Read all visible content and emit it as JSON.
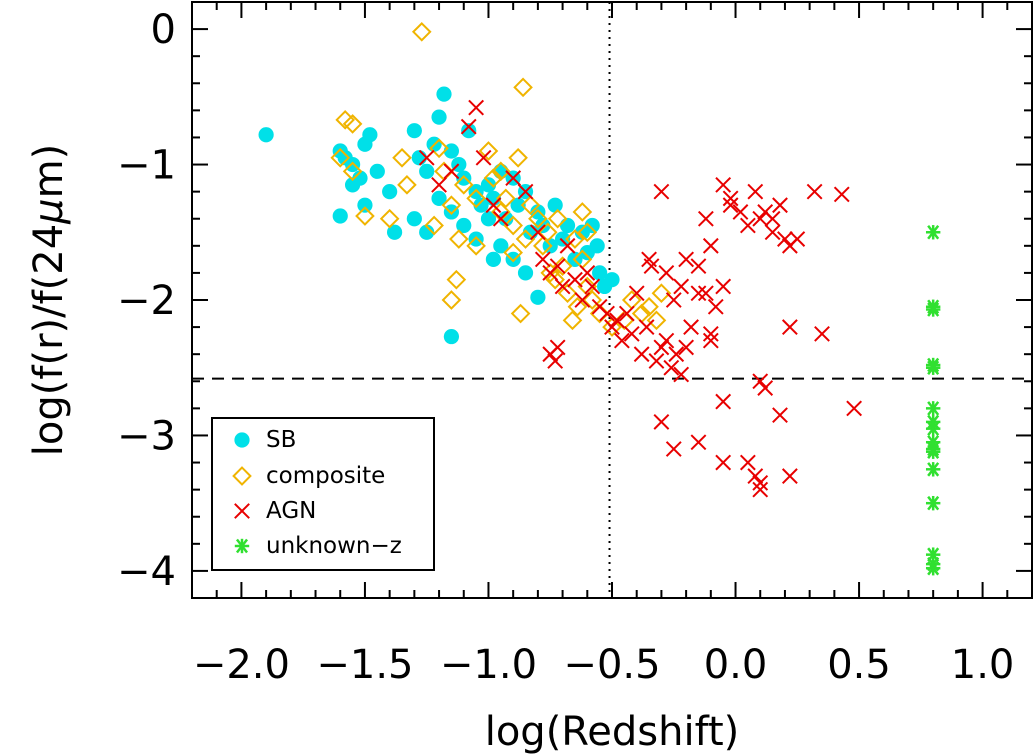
{
  "chart_data": {
    "type": "scatter",
    "xlabel": "log(Redshift)",
    "ylabel_parts": [
      "log(f(r)/f(24",
      "μ",
      "m)"
    ],
    "xlim": [
      -2.2,
      1.2
    ],
    "ylim": [
      -4.2,
      0.2
    ],
    "x_ticks": [
      -2.0,
      -1.5,
      -1.0,
      -0.5,
      0.0,
      0.5,
      1.0
    ],
    "x_tick_labels": [
      "−2.0",
      "−1.5",
      "−1.0",
      "−0.5",
      "0.0",
      "0.5",
      "1.0"
    ],
    "y_ticks": [
      0,
      -1,
      -2,
      -3,
      -4
    ],
    "y_tick_labels": [
      "0",
      "−1",
      "−2",
      "−3",
      "−4"
    ],
    "reference_lines": [
      {
        "orientation": "vertical",
        "x": -0.51,
        "style": "dotted"
      },
      {
        "orientation": "horizontal",
        "y": -2.58,
        "style": "dashed"
      }
    ],
    "legend_position": "bottom-left",
    "series": [
      {
        "name": "SB",
        "marker": "circle",
        "color": "#00e0e8",
        "points": [
          [
            -1.9,
            -0.78
          ],
          [
            -1.6,
            -0.9
          ],
          [
            -1.58,
            -0.95
          ],
          [
            -1.55,
            -1.0
          ],
          [
            -1.5,
            -0.85
          ],
          [
            -1.48,
            -0.78
          ],
          [
            -1.52,
            -1.1
          ],
          [
            -1.45,
            -1.05
          ],
          [
            -1.55,
            -1.15
          ],
          [
            -1.5,
            -1.3
          ],
          [
            -1.6,
            -1.38
          ],
          [
            -1.4,
            -1.2
          ],
          [
            -1.38,
            -1.5
          ],
          [
            -1.3,
            -0.75
          ],
          [
            -1.28,
            -0.95
          ],
          [
            -1.25,
            -1.05
          ],
          [
            -1.22,
            -0.85
          ],
          [
            -1.2,
            -0.65
          ],
          [
            -1.18,
            -0.48
          ],
          [
            -1.15,
            -0.9
          ],
          [
            -1.12,
            -1.0
          ],
          [
            -1.1,
            -1.1
          ],
          [
            -1.08,
            -0.75
          ],
          [
            -1.05,
            -1.2
          ],
          [
            -1.03,
            -1.3
          ],
          [
            -1.0,
            -1.15
          ],
          [
            -0.98,
            -1.25
          ],
          [
            -0.95,
            -1.05
          ],
          [
            -0.93,
            -1.4
          ],
          [
            -0.9,
            -1.1
          ],
          [
            -0.88,
            -1.3
          ],
          [
            -0.85,
            -1.2
          ],
          [
            -0.83,
            -1.5
          ],
          [
            -0.8,
            -1.35
          ],
          [
            -0.78,
            -1.45
          ],
          [
            -0.75,
            -1.6
          ],
          [
            -0.73,
            -1.3
          ],
          [
            -0.7,
            -1.55
          ],
          [
            -0.68,
            -1.45
          ],
          [
            -0.65,
            -1.7
          ],
          [
            -0.62,
            -1.5
          ],
          [
            -0.6,
            -1.65
          ],
          [
            -0.58,
            -1.45
          ],
          [
            -0.56,
            -1.6
          ],
          [
            -0.55,
            -1.8
          ],
          [
            -0.53,
            -1.9
          ],
          [
            -0.5,
            -1.85
          ],
          [
            -1.2,
            -1.25
          ],
          [
            -1.15,
            -1.35
          ],
          [
            -1.1,
            -1.45
          ],
          [
            -1.05,
            -1.55
          ],
          [
            -1.0,
            -1.4
          ],
          [
            -0.95,
            -1.6
          ],
          [
            -0.9,
            -1.7
          ],
          [
            -0.85,
            -1.8
          ],
          [
            -0.8,
            -1.98
          ],
          [
            -1.15,
            -2.27
          ],
          [
            -1.3,
            -1.4
          ],
          [
            -1.25,
            -1.5
          ],
          [
            -0.98,
            -1.7
          ]
        ]
      },
      {
        "name": "composite",
        "marker": "diamond",
        "color": "#f0b400",
        "points": [
          [
            -1.27,
            -0.02
          ],
          [
            -0.86,
            -0.43
          ],
          [
            -1.58,
            -0.67
          ],
          [
            -1.55,
            -0.7
          ],
          [
            -1.6,
            -0.95
          ],
          [
            -1.55,
            -1.05
          ],
          [
            -1.5,
            -1.38
          ],
          [
            -1.4,
            -1.4
          ],
          [
            -1.35,
            -0.95
          ],
          [
            -1.33,
            -1.15
          ],
          [
            -1.2,
            -0.88
          ],
          [
            -1.18,
            -1.05
          ],
          [
            -1.15,
            -1.3
          ],
          [
            -1.12,
            -1.55
          ],
          [
            -1.1,
            -1.15
          ],
          [
            -1.05,
            -1.25
          ],
          [
            -1.0,
            -0.9
          ],
          [
            -0.98,
            -1.1
          ],
          [
            -0.95,
            -1.35
          ],
          [
            -0.93,
            -1.25
          ],
          [
            -0.9,
            -1.45
          ],
          [
            -0.88,
            -0.95
          ],
          [
            -0.85,
            -1.55
          ],
          [
            -0.83,
            -1.3
          ],
          [
            -0.8,
            -1.4
          ],
          [
            -0.78,
            -1.6
          ],
          [
            -0.76,
            -1.5
          ],
          [
            -0.73,
            -1.85
          ],
          [
            -0.7,
            -1.75
          ],
          [
            -0.68,
            -1.95
          ],
          [
            -0.66,
            -2.15
          ],
          [
            -0.64,
            -2.05
          ],
          [
            -0.62,
            -1.7
          ],
          [
            -0.6,
            -1.9
          ],
          [
            -0.58,
            -2.0
          ],
          [
            -0.55,
            -2.1
          ],
          [
            -0.5,
            -2.2
          ],
          [
            -0.45,
            -2.15
          ],
          [
            -0.42,
            -2.0
          ],
          [
            -0.38,
            -2.1
          ],
          [
            -0.35,
            -2.05
          ],
          [
            -0.32,
            -2.15
          ],
          [
            -0.3,
            -1.95
          ],
          [
            -1.13,
            -1.85
          ],
          [
            -1.15,
            -2.0
          ],
          [
            -0.87,
            -2.1
          ],
          [
            -0.6,
            -1.5
          ],
          [
            -0.62,
            -1.35
          ],
          [
            -0.65,
            -1.55
          ],
          [
            -0.95,
            -1.05
          ],
          [
            -0.9,
            -1.65
          ],
          [
            -0.75,
            -1.8
          ],
          [
            -0.72,
            -1.4
          ],
          [
            -1.22,
            -1.45
          ],
          [
            -1.05,
            -1.6
          ]
        ]
      },
      {
        "name": "AGN",
        "marker": "x",
        "color": "#e80000",
        "points": [
          [
            -1.05,
            -0.58
          ],
          [
            -1.08,
            -0.72
          ],
          [
            -1.25,
            -0.95
          ],
          [
            -1.2,
            -1.15
          ],
          [
            -1.15,
            -1.05
          ],
          [
            -1.02,
            -0.95
          ],
          [
            -0.98,
            -1.3
          ],
          [
            -0.95,
            -1.4
          ],
          [
            -0.9,
            -1.1
          ],
          [
            -0.85,
            -1.2
          ],
          [
            -0.8,
            -1.5
          ],
          [
            -0.78,
            -1.7
          ],
          [
            -0.75,
            -1.8
          ],
          [
            -0.72,
            -1.75
          ],
          [
            -0.7,
            -1.9
          ],
          [
            -0.68,
            -1.6
          ],
          [
            -0.65,
            -1.85
          ],
          [
            -0.62,
            -2.0
          ],
          [
            -0.6,
            -1.8
          ],
          [
            -0.58,
            -1.9
          ],
          [
            -0.55,
            -2.05
          ],
          [
            -0.52,
            -2.1
          ],
          [
            -0.5,
            -2.2
          ],
          [
            -0.48,
            -2.15
          ],
          [
            -0.46,
            -2.3
          ],
          [
            -0.44,
            -2.1
          ],
          [
            -0.42,
            -2.25
          ],
          [
            -0.4,
            -1.95
          ],
          [
            -0.38,
            -2.4
          ],
          [
            -0.36,
            -2.2
          ],
          [
            -0.34,
            -1.75
          ],
          [
            -0.32,
            -2.45
          ],
          [
            -0.3,
            -2.35
          ],
          [
            -0.28,
            -2.3
          ],
          [
            -0.26,
            -2.5
          ],
          [
            -0.24,
            -2.4
          ],
          [
            -0.22,
            -2.55
          ],
          [
            -0.2,
            -2.35
          ],
          [
            -0.18,
            -2.2
          ],
          [
            -0.72,
            -2.35
          ],
          [
            -0.73,
            -2.45
          ],
          [
            -0.75,
            -2.4
          ],
          [
            -0.3,
            -1.2
          ],
          [
            -0.05,
            -1.15
          ],
          [
            -0.02,
            -1.3
          ],
          [
            0.02,
            -1.35
          ],
          [
            0.05,
            -1.45
          ],
          [
            0.08,
            -1.2
          ],
          [
            0.1,
            -1.4
          ],
          [
            0.12,
            -1.35
          ],
          [
            0.15,
            -1.5
          ],
          [
            0.18,
            -1.3
          ],
          [
            0.2,
            -1.55
          ],
          [
            0.22,
            -1.6
          ],
          [
            0.25,
            -1.55
          ],
          [
            0.32,
            -1.2
          ],
          [
            0.43,
            -1.22
          ],
          [
            -0.1,
            -1.6
          ],
          [
            -0.12,
            -1.4
          ],
          [
            -0.15,
            -1.75
          ],
          [
            -0.2,
            -1.7
          ],
          [
            -0.22,
            -1.9
          ],
          [
            -0.25,
            -2.0
          ],
          [
            -0.28,
            -1.8
          ],
          [
            -0.05,
            -1.9
          ],
          [
            -0.08,
            -2.05
          ],
          [
            -0.15,
            -1.95
          ],
          [
            -0.35,
            -1.7
          ],
          [
            -0.1,
            -2.25
          ],
          [
            0.22,
            -2.2
          ],
          [
            0.35,
            -2.25
          ],
          [
            -0.1,
            -2.3
          ],
          [
            0.1,
            -2.6
          ],
          [
            0.12,
            -2.65
          ],
          [
            -0.05,
            -2.75
          ],
          [
            0.18,
            -2.85
          ],
          [
            0.48,
            -2.8
          ],
          [
            -0.3,
            -2.9
          ],
          [
            -0.25,
            -3.1
          ],
          [
            -0.15,
            -3.05
          ],
          [
            0.05,
            -3.2
          ],
          [
            -0.05,
            -3.2
          ],
          [
            0.08,
            -3.3
          ],
          [
            0.1,
            -3.4
          ],
          [
            0.1,
            -3.35
          ],
          [
            0.22,
            -3.3
          ],
          [
            -0.12,
            -1.95
          ],
          [
            -0.02,
            -1.25
          ],
          [
            0.15,
            -1.4
          ]
        ]
      },
      {
        "name": "unknown−z",
        "marker": "asterisk",
        "color": "#30e030",
        "points": [
          [
            0.8,
            -1.5
          ],
          [
            0.8,
            -2.05
          ],
          [
            0.8,
            -2.07
          ],
          [
            0.8,
            -2.48
          ],
          [
            0.8,
            -2.5
          ],
          [
            0.8,
            -2.8
          ],
          [
            0.8,
            -2.9
          ],
          [
            0.8,
            -2.95
          ],
          [
            0.8,
            -3.05
          ],
          [
            0.8,
            -3.1
          ],
          [
            0.8,
            -3.12
          ],
          [
            0.8,
            -3.25
          ],
          [
            0.8,
            -3.5
          ],
          [
            0.8,
            -3.88
          ],
          [
            0.8,
            -3.95
          ],
          [
            0.8,
            -3.98
          ]
        ]
      }
    ]
  }
}
